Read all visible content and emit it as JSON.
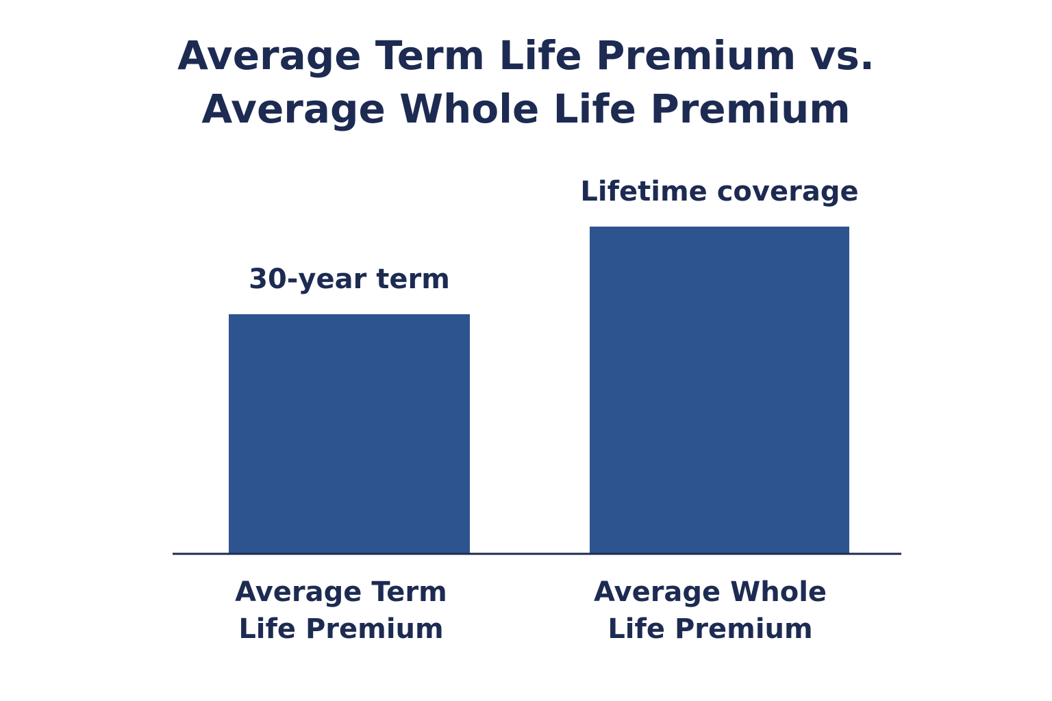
{
  "chart_data": {
    "type": "bar",
    "title_lines": [
      "Average Term Life Premium vs.",
      "Average Whole Life Premium"
    ],
    "categories": [
      [
        "Average Term",
        "Life Premium"
      ],
      [
        "Average Whole",
        "Life Premium"
      ]
    ],
    "values": [
      350,
      478
    ],
    "ylim": [
      0,
      500
    ],
    "bar_labels": [
      "30-year term",
      "Lifetime coverage"
    ],
    "xlabel": "",
    "ylabel": "",
    "grid": false,
    "legend": "none",
    "colors": {
      "bar": "#2e5490",
      "text": "#1d2b52",
      "axis": "#1d2b52"
    }
  }
}
